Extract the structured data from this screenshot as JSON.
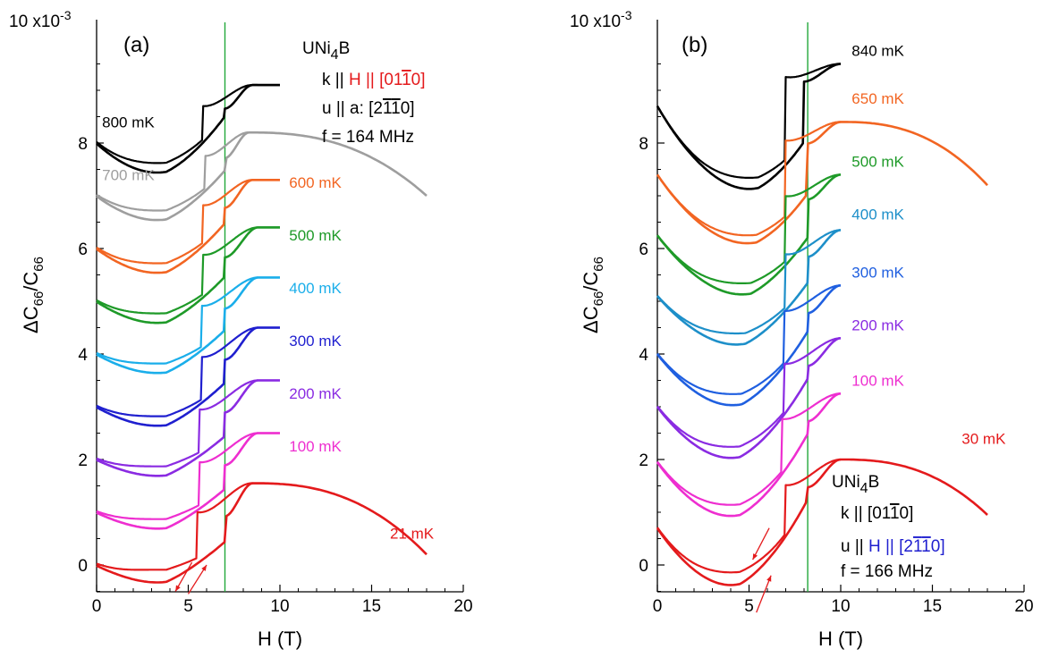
{
  "chart_data": [
    {
      "type": "line",
      "panel_label": "(a)",
      "xlabel": "H (T)",
      "ylabel": "ΔC66/C66",
      "ylabel_main": "ΔC",
      "ylabel_sub": "66",
      "ylabel_sep": "/C",
      "y_exponent_label": "10 x10",
      "y_exponent_power": "-3",
      "xlim": [
        0,
        20
      ],
      "ylim": [
        -0.5,
        10
      ],
      "xticks": [
        0,
        5,
        10,
        15,
        20
      ],
      "yticks": [
        0,
        2,
        4,
        6,
        8
      ],
      "xtick_labels": [
        "0",
        "5",
        "10",
        "15",
        "20"
      ],
      "ytick_labels": [
        "0",
        "2",
        "4",
        "6",
        "8"
      ],
      "transition_field": 7.0,
      "info": {
        "compound_main": "UNi",
        "compound_sub": "4",
        "compound_end": "B",
        "k_prefix": "k || ",
        "k_highlight": "H || [01",
        "k_bar_digit": "1",
        "k_suffix": "0]",
        "u_line_prefix": "u || a: [2",
        "u_bar1": "1",
        "u_bar2": "1",
        "u_line_suffix": "0]",
        "f_line": "f = 164 MHz",
        "highlight_color": "#e41a1c"
      },
      "series": [
        {
          "name": "800 mK",
          "color": "#000000",
          "offset": 8,
          "hmax": 10,
          "hc1": 5.8,
          "hc2": 7.0,
          "min_h": 3.3,
          "min_v": -0.5,
          "top": 1.1,
          "top_h": 8.5,
          "split": 0.12,
          "label_x": 0.3,
          "label_y": 8.3
        },
        {
          "name": "700 mK",
          "color": "#9e9e9e",
          "offset": 7,
          "hmax": 18,
          "hc1": 5.9,
          "hc2": 7.0,
          "min_h": 3.3,
          "min_v": -0.4,
          "top": 1.2,
          "top_h": 8.3,
          "split": 0.12,
          "label_x": 0.3,
          "label_y": 7.3,
          "tail_end": 0.0
        },
        {
          "name": "600 mK",
          "color": "#f26522",
          "offset": 6,
          "hmax": 10,
          "hc1": 5.8,
          "hc2": 7.0,
          "min_h": 3.3,
          "min_v": -0.4,
          "top": 1.3,
          "top_h": 8.5,
          "split": 0.12,
          "label_x": 10.5,
          "label_y": 7.15
        },
        {
          "name": "500 mK",
          "color": "#1e9a28",
          "offset": 5,
          "hmax": 10,
          "hc1": 5.8,
          "hc2": 7.0,
          "min_h": 3.3,
          "min_v": -0.35,
          "top": 1.4,
          "top_h": 8.8,
          "split": 0.12,
          "label_x": 10.5,
          "label_y": 6.15
        },
        {
          "name": "400 mK",
          "color": "#1aaeea",
          "offset": 4,
          "hmax": 10,
          "hc1": 5.7,
          "hc2": 7.0,
          "min_h": 3.3,
          "min_v": -0.3,
          "top": 1.45,
          "top_h": 8.8,
          "split": 0.12,
          "label_x": 10.5,
          "label_y": 5.15
        },
        {
          "name": "300 mK",
          "color": "#1f1fcf",
          "offset": 3,
          "hmax": 10,
          "hc1": 5.7,
          "hc2": 7.0,
          "min_h": 3.3,
          "min_v": -0.3,
          "top": 1.5,
          "top_h": 8.8,
          "split": 0.12,
          "label_x": 10.5,
          "label_y": 4.15
        },
        {
          "name": "200 mK",
          "color": "#8a2be2",
          "offset": 2,
          "hmax": 10,
          "hc1": 5.6,
          "hc2": 7.0,
          "min_h": 3.3,
          "min_v": -0.25,
          "top": 1.5,
          "top_h": 8.8,
          "split": 0.12,
          "label_x": 10.5,
          "label_y": 3.15
        },
        {
          "name": "100 mK",
          "color": "#ee2ed0",
          "offset": 1,
          "hmax": 10,
          "hc1": 5.6,
          "hc2": 7.0,
          "min_h": 3.3,
          "min_v": -0.25,
          "top": 1.5,
          "top_h": 8.8,
          "split": 0.12,
          "label_x": 10.5,
          "label_y": 2.15
        },
        {
          "name": "21 mK",
          "color": "#e41a1c",
          "offset": 0,
          "hmax": 18,
          "hc1": 5.5,
          "hc2": 7.0,
          "min_h": 3.3,
          "min_v": -0.25,
          "top": 1.55,
          "top_h": 8.5,
          "split": 0.16,
          "label_x": 16.0,
          "label_y": 0.5,
          "tail_end": 0.2
        }
      ]
    },
    {
      "type": "line",
      "panel_label": "(b)",
      "xlabel": "H (T)",
      "ylabel": "ΔC66/C66",
      "ylabel_main": "ΔC",
      "ylabel_sub": "66",
      "ylabel_sep": "/C",
      "y_exponent_label": "10 x10",
      "y_exponent_power": "-3",
      "xlim": [
        0,
        20
      ],
      "ylim": [
        -0.5,
        10
      ],
      "xticks": [
        0,
        5,
        10,
        15,
        20
      ],
      "yticks": [
        0,
        2,
        4,
        6,
        8
      ],
      "xtick_labels": [
        "0",
        "5",
        "10",
        "15",
        "20"
      ],
      "ytick_labels": [
        "0",
        "2",
        "4",
        "6",
        "8"
      ],
      "transition_field": 8.2,
      "info": {
        "compound_main": "UNi",
        "compound_sub": "4",
        "compound_end": "B",
        "k_prefix": "k || [01",
        "k_bar_digit": "1",
        "k_suffix": "0]",
        "u_prefix": "u || ",
        "u_highlight": "H || [2",
        "u_bar1": "1",
        "u_bar2": "1",
        "u_suffix": "0]",
        "f_line": "f = 166 MHz",
        "highlight_color": "#1f1fcf"
      },
      "series": [
        {
          "name": "840 mK",
          "color": "#000000",
          "offset": 8.7,
          "hmax": 10,
          "hc1": 7.0,
          "hc2": 8.0,
          "min_h": 5.0,
          "min_v": -1.5,
          "top": 0.8,
          "top_h": 10,
          "split": 0.14,
          "label_x": 10.6,
          "label_y": 9.65
        },
        {
          "name": "650 mK",
          "color": "#f26522",
          "offset": 7.4,
          "hmax": 18,
          "hc1": 7.0,
          "hc2": 8.2,
          "min_h": 4.9,
          "min_v": -1.25,
          "top": 1.0,
          "top_h": 10,
          "split": 0.1,
          "label_x": 10.6,
          "label_y": 8.75,
          "tail_end": -0.2
        },
        {
          "name": "500 mK",
          "color": "#1e9a28",
          "offset": 6.25,
          "hmax": 10,
          "hc1": 7.0,
          "hc2": 8.2,
          "min_h": 4.6,
          "min_v": -1.05,
          "top": 1.15,
          "top_h": 10,
          "split": 0.14,
          "label_x": 10.6,
          "label_y": 7.55
        },
        {
          "name": "400 mK",
          "color": "#1d8fc9",
          "offset": 5.1,
          "hmax": 10,
          "hc1": 7.0,
          "hc2": 8.2,
          "min_h": 4.3,
          "min_v": -0.85,
          "top": 1.25,
          "top_h": 10,
          "split": 0.14,
          "label_x": 10.6,
          "label_y": 6.55
        },
        {
          "name": "300 mK",
          "color": "#1f5fe0",
          "offset": 4.0,
          "hmax": 10,
          "hc1": 6.9,
          "hc2": 8.2,
          "min_h": 4.1,
          "min_v": -0.9,
          "top": 1.3,
          "top_h": 10,
          "split": 0.14,
          "label_x": 10.6,
          "label_y": 5.45
        },
        {
          "name": "200 mK",
          "color": "#8a2be2",
          "offset": 3.0,
          "hmax": 10,
          "hc1": 6.9,
          "hc2": 8.2,
          "min_h": 4.0,
          "min_v": -0.9,
          "top": 1.3,
          "top_h": 10,
          "split": 0.14,
          "label_x": 10.6,
          "label_y": 4.45
        },
        {
          "name": "100 mK",
          "color": "#ee2ed0",
          "offset": 1.95,
          "hmax": 10,
          "hc1": 6.8,
          "hc2": 8.2,
          "min_h": 4.0,
          "min_v": -0.95,
          "top": 1.3,
          "top_h": 10,
          "split": 0.14,
          "label_x": 10.6,
          "label_y": 3.4
        },
        {
          "name": "30 mK",
          "color": "#e41a1c",
          "offset": 0.7,
          "hmax": 18,
          "hc1": 7.0,
          "hc2": 8.2,
          "min_h": 4.0,
          "min_v": -1.0,
          "top": 1.3,
          "top_h": 10,
          "split": 0.16,
          "label_x": 16.6,
          "label_y": 2.3,
          "tail_end": 0.25
        }
      ]
    }
  ]
}
